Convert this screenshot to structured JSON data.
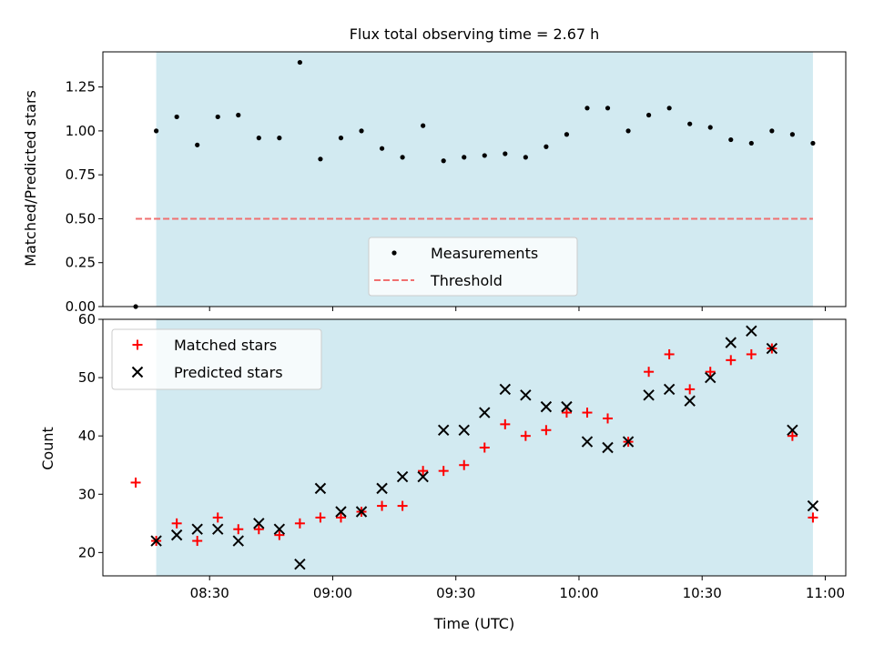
{
  "chart_data": [
    {
      "type": "scatter",
      "title": "Flux total observing time = 2.67 h",
      "ylabel": "Matched/Predicted stars",
      "xlabel": "",
      "x_axis": "time",
      "xlim": [
        "08:04",
        "11:05"
      ],
      "ylim": [
        0,
        1.45
      ],
      "yticks": [
        "0.00",
        "0.25",
        "0.50",
        "0.75",
        "1.00",
        "1.25"
      ],
      "shaded_region": {
        "x_start": "08:17",
        "x_end": "10:57",
        "color": "#add8e6"
      },
      "legend": {
        "position": "lower-center",
        "entries": [
          "Measurements",
          "Threshold"
        ]
      },
      "threshold": {
        "name": "Threshold",
        "value": 0.5,
        "x_start": "08:12",
        "x_end": "10:57",
        "color": "#f07070",
        "style": "dashed"
      },
      "series": [
        {
          "name": "Measurements",
          "marker": "dot",
          "color": "#000000",
          "x": [
            "08:12",
            "08:17",
            "08:22",
            "08:27",
            "08:32",
            "08:37",
            "08:42",
            "08:47",
            "08:52",
            "08:57",
            "09:02",
            "09:07",
            "09:12",
            "09:17",
            "09:22",
            "09:27",
            "09:32",
            "09:37",
            "09:42",
            "09:47",
            "09:52",
            "09:57",
            "10:02",
            "10:07",
            "10:12",
            "10:17",
            "10:22",
            "10:27",
            "10:32",
            "10:37",
            "10:42",
            "10:47",
            "10:52",
            "10:57"
          ],
          "y": [
            0.0,
            1.0,
            1.08,
            0.92,
            1.08,
            1.09,
            0.96,
            0.96,
            1.39,
            0.84,
            0.96,
            1.0,
            0.9,
            0.85,
            1.03,
            0.83,
            0.85,
            0.86,
            0.87,
            0.85,
            0.91,
            0.98,
            1.13,
            1.13,
            1.0,
            1.09,
            1.13,
            1.04,
            1.02,
            0.95,
            0.93,
            1.0,
            0.98,
            0.93
          ]
        }
      ]
    },
    {
      "type": "scatter",
      "title": "",
      "ylabel": "Count",
      "xlabel": "Time (UTC)",
      "x_axis": "time",
      "xlim": [
        "08:04",
        "11:05"
      ],
      "ylim": [
        16,
        60
      ],
      "yticks": [
        "20",
        "30",
        "40",
        "50",
        "60"
      ],
      "xticks": [
        "08:30",
        "09:00",
        "09:30",
        "10:00",
        "10:30",
        "11:00"
      ],
      "shaded_region": {
        "x_start": "08:17",
        "x_end": "10:57",
        "color": "#add8e6"
      },
      "legend": {
        "position": "top-left",
        "entries": [
          "Matched stars",
          "Predicted stars"
        ]
      },
      "series": [
        {
          "name": "Matched stars",
          "marker": "plus",
          "color": "#ff0000",
          "x": [
            "08:12",
            "08:17",
            "08:22",
            "08:27",
            "08:32",
            "08:37",
            "08:42",
            "08:47",
            "08:52",
            "08:57",
            "09:02",
            "09:07",
            "09:12",
            "09:17",
            "09:22",
            "09:27",
            "09:32",
            "09:37",
            "09:42",
            "09:47",
            "09:52",
            "09:57",
            "10:02",
            "10:07",
            "10:12",
            "10:17",
            "10:22",
            "10:27",
            "10:32",
            "10:37",
            "10:42",
            "10:47",
            "10:52",
            "10:57"
          ],
          "y": [
            32,
            22,
            25,
            22,
            26,
            24,
            24,
            23,
            25,
            26,
            26,
            27,
            28,
            28,
            34,
            34,
            35,
            38,
            42,
            40,
            41,
            44,
            44,
            43,
            39,
            51,
            54,
            48,
            51,
            53,
            54,
            55,
            40,
            26
          ]
        },
        {
          "name": "Predicted stars",
          "marker": "x",
          "color": "#000000",
          "x": [
            "08:17",
            "08:22",
            "08:27",
            "08:32",
            "08:37",
            "08:42",
            "08:47",
            "08:52",
            "08:57",
            "09:02",
            "09:07",
            "09:12",
            "09:17",
            "09:22",
            "09:27",
            "09:32",
            "09:37",
            "09:42",
            "09:47",
            "09:52",
            "09:57",
            "10:02",
            "10:07",
            "10:12",
            "10:17",
            "10:22",
            "10:27",
            "10:32",
            "10:37",
            "10:42",
            "10:47",
            "10:52",
            "10:57"
          ],
          "y": [
            22,
            23,
            24,
            24,
            22,
            25,
            24,
            18,
            31,
            27,
            27,
            31,
            33,
            33,
            41,
            41,
            44,
            48,
            47,
            45,
            45,
            39,
            38,
            39,
            47,
            48,
            46,
            50,
            56,
            58,
            55,
            41,
            28
          ]
        }
      ]
    }
  ]
}
